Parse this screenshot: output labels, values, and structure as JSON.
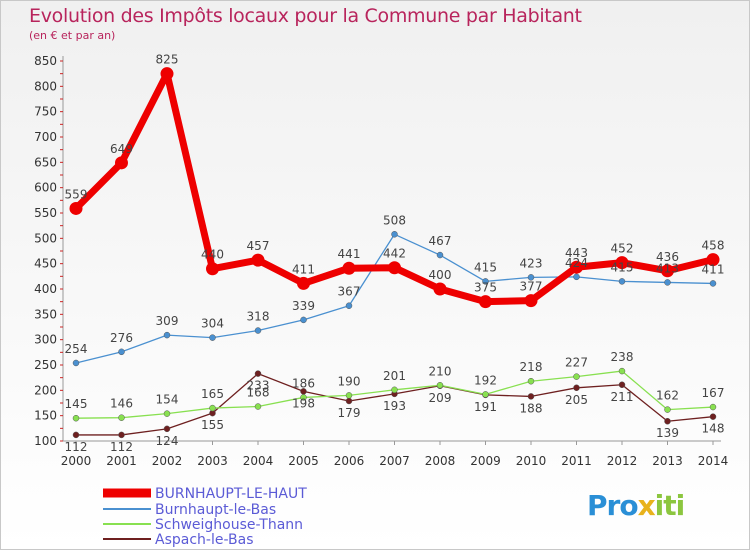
{
  "title": "Evolution des Impôts locaux pour la Commune par Habitant",
  "subtitle": "(en € et par an)",
  "logo": {
    "part1": "Pro",
    "part2": "x",
    "part3": "iti"
  },
  "chart_data": {
    "type": "line",
    "title": "Evolution des Impôts locaux pour la Commune par Habitant",
    "subtitle": "(en € et par an)",
    "x": [
      "2000",
      "2001",
      "2002",
      "2003",
      "2004",
      "2005",
      "2006",
      "2007",
      "2008",
      "2009",
      "2010",
      "2011",
      "2012",
      "2013",
      "2014"
    ],
    "ylim": [
      100,
      850
    ],
    "yticks": [
      100,
      150,
      200,
      250,
      300,
      350,
      400,
      450,
      500,
      550,
      600,
      650,
      700,
      750,
      800,
      850
    ],
    "grid": false,
    "legend_position": "bottom-left",
    "series": [
      {
        "name": "BURNHAUPT-LE-HAUT",
        "color": "#ee0000",
        "values": [
          559,
          649,
          825,
          440,
          457,
          411,
          441,
          442,
          400,
          375,
          377,
          443,
          452,
          436,
          458
        ]
      },
      {
        "name": "Burnhaupt-le-Bas",
        "color": "#4a90d0",
        "values": [
          254,
          276,
          309,
          304,
          318,
          339,
          367,
          508,
          467,
          415,
          423,
          424,
          415,
          413,
          411
        ]
      },
      {
        "name": "Schweighouse-Thann",
        "color": "#88e050",
        "values": [
          145,
          146,
          154,
          165,
          168,
          186,
          190,
          201,
          210,
          192,
          218,
          227,
          238,
          162,
          167
        ]
      },
      {
        "name": "Aspach-le-Bas",
        "color": "#6e2020",
        "values": [
          112,
          112,
          124,
          155,
          233,
          198,
          179,
          193,
          209,
          191,
          188,
          205,
          211,
          139,
          148
        ]
      }
    ]
  }
}
